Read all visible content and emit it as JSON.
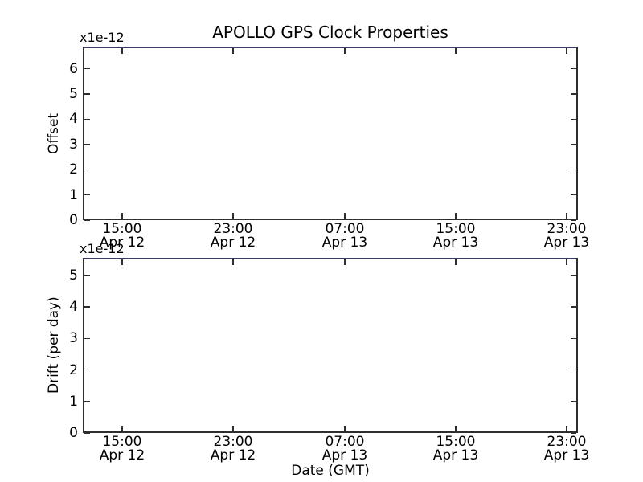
{
  "figure": {
    "title": "APOLLO GPS Clock Properties",
    "background_color": "#ffffff",
    "text_color": "#000000",
    "spine_color": "#2e2e2e",
    "top_spine_color": "#3b3b66"
  },
  "chart_data": [
    {
      "type": "line",
      "name": "offset",
      "title": "APOLLO GPS Clock Properties",
      "ylabel": "Offset",
      "y_offset_label": "x1e-12",
      "yticks": [
        0,
        1,
        2,
        3,
        4,
        5,
        6
      ],
      "ylim": [
        0,
        6.88
      ],
      "xticks": [
        {
          "time": "15:00",
          "date": "Apr 12"
        },
        {
          "time": "23:00",
          "date": "Apr 12"
        },
        {
          "time": "07:00",
          "date": "Apr 13"
        },
        {
          "time": "15:00",
          "date": "Apr 13"
        },
        {
          "time": "23:00",
          "date": "Apr 13"
        }
      ],
      "grid": false,
      "series": []
    },
    {
      "type": "line",
      "name": "drift",
      "ylabel": "Drift (per day)",
      "xlabel": "Date (GMT)",
      "y_offset_label": "x1e-12",
      "yticks": [
        0,
        1,
        2,
        3,
        4,
        5
      ],
      "ylim": [
        0,
        5.56
      ],
      "xticks": [
        {
          "time": "15:00",
          "date": "Apr 12"
        },
        {
          "time": "23:00",
          "date": "Apr 12"
        },
        {
          "time": "07:00",
          "date": "Apr 13"
        },
        {
          "time": "15:00",
          "date": "Apr 13"
        },
        {
          "time": "23:00",
          "date": "Apr 13"
        }
      ],
      "grid": false,
      "series": []
    }
  ]
}
